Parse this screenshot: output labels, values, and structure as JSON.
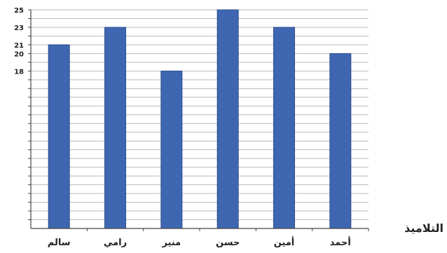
{
  "chart_data": {
    "type": "bar",
    "categories": [
      "سالم",
      "رامي",
      "منير",
      "حسن",
      "أمين",
      "أحمد"
    ],
    "values": [
      21,
      23,
      18,
      25,
      23,
      20
    ],
    "title": "",
    "xlabel": "التلاميذ",
    "ylabel": "",
    "ylim": [
      0,
      25
    ],
    "y_ticks_labeled": [
      25,
      23,
      21,
      20,
      18
    ],
    "grid": true,
    "legend": "none",
    "colors": {
      "bar": "#3f67b1",
      "bar_edge": "#2c4f90",
      "grid": "#b9b9b9",
      "axis": "#444444",
      "text": "#222222"
    }
  }
}
